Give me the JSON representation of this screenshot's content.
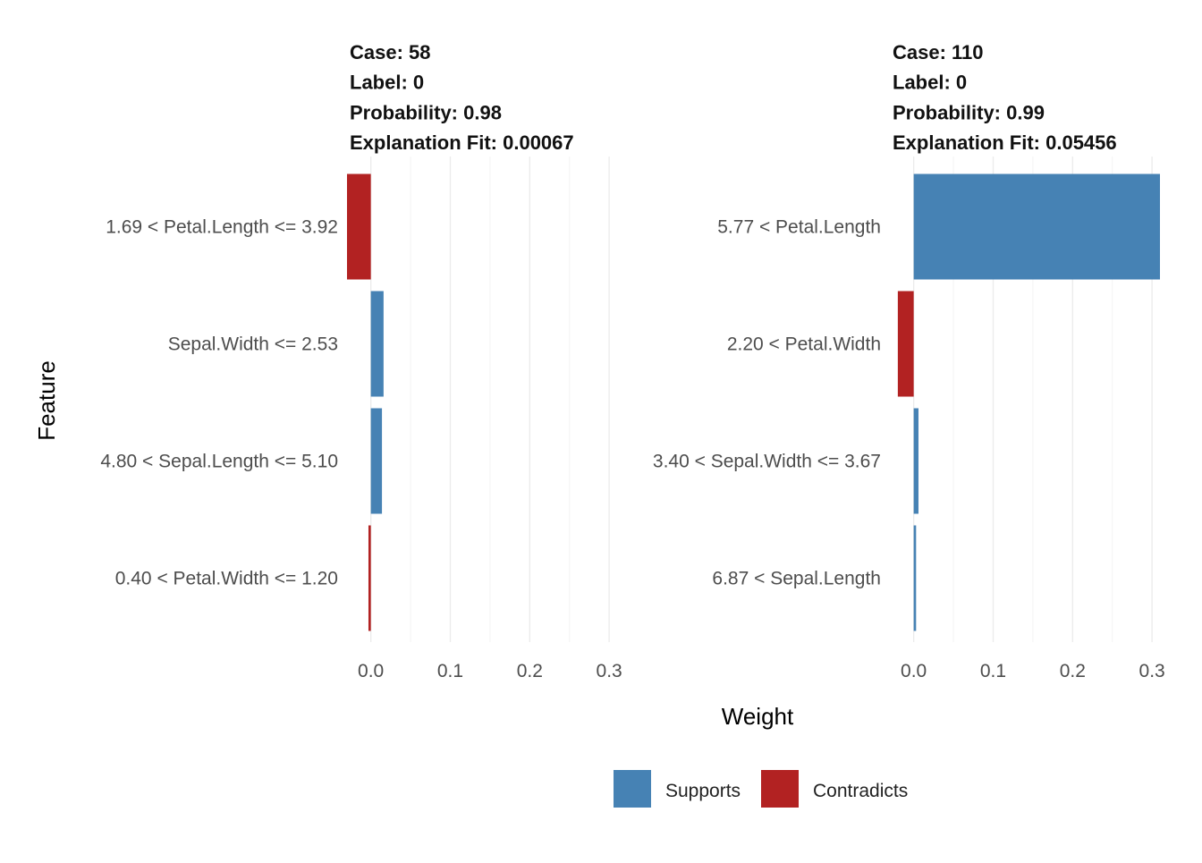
{
  "chart_data": {
    "type": "bar",
    "orientation": "horizontal",
    "xlabel": "Weight",
    "ylabel": "Feature",
    "xlim": [
      -0.03,
      0.31
    ],
    "xticks": [
      0.0,
      0.1,
      0.2,
      0.3
    ],
    "xtick_labels": [
      "0.0",
      "0.1",
      "0.2",
      "0.3"
    ],
    "grid": true,
    "legend": {
      "position": "bottom",
      "entries": [
        {
          "label": "Supports",
          "color": "#4682B4"
        },
        {
          "label": "Contradicts",
          "color": "#B22222"
        }
      ]
    },
    "panels": [
      {
        "header": [
          "Case: 58",
          "Label: 0",
          "Probability: 0.98",
          "Explanation Fit: 0.00067"
        ],
        "features": [
          {
            "label": "1.69 < Petal.Length <= 3.92",
            "weight": -0.03,
            "type": "Contradicts"
          },
          {
            "label": "Sepal.Width <= 2.53",
            "weight": 0.016,
            "type": "Supports"
          },
          {
            "label": "4.80 < Sepal.Length <= 5.10",
            "weight": 0.014,
            "type": "Supports"
          },
          {
            "label": "0.40 < Petal.Width <= 1.20",
            "weight": -0.003,
            "type": "Contradicts"
          }
        ]
      },
      {
        "header": [
          "Case: 110",
          "Label: 0",
          "Probability: 0.99",
          "Explanation Fit: 0.05456"
        ],
        "features": [
          {
            "label": "5.77 < Petal.Length",
            "weight": 0.31,
            "type": "Supports"
          },
          {
            "label": "2.20 < Petal.Width",
            "weight": -0.02,
            "type": "Contradicts"
          },
          {
            "label": "3.40 < Sepal.Width <= 3.67",
            "weight": 0.006,
            "type": "Supports"
          },
          {
            "label": "6.87 < Sepal.Length",
            "weight": 0.003,
            "type": "Supports"
          }
        ]
      }
    ]
  }
}
